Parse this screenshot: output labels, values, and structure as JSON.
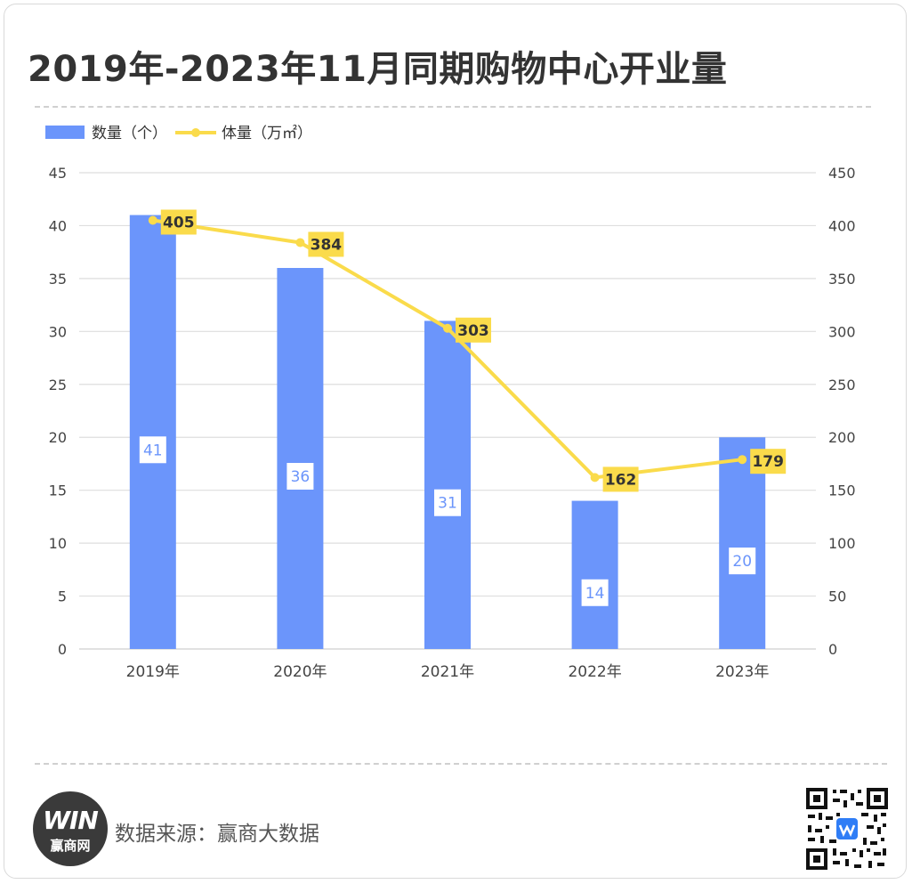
{
  "title": "2019年-2023年11月同期购物中心开业量",
  "source": "数据来源：赢商大数据",
  "logo": {
    "mark": "WIN",
    "label": "赢商网"
  },
  "qr_icon": "qr-code-icon",
  "chart_data": {
    "type": "bar+line",
    "categories": [
      "2019年",
      "2020年",
      "2021年",
      "2022年",
      "2023年"
    ],
    "series": [
      {
        "name": "数量（个）",
        "type": "bar",
        "axis": "left",
        "color": "#6b95fb",
        "values": [
          41,
          36,
          31,
          14,
          20
        ]
      },
      {
        "name": "体量（万㎡）",
        "type": "line",
        "axis": "right",
        "color": "#fadb4b",
        "values": [
          405,
          384,
          303,
          162,
          179
        ]
      }
    ],
    "y_left": {
      "min": 0,
      "max": 45,
      "step": 5,
      "ticks": [
        "0",
        "5",
        "10",
        "15",
        "20",
        "25",
        "30",
        "35",
        "40",
        "45"
      ]
    },
    "y_right": {
      "min": 0,
      "max": 450,
      "step": 50,
      "ticks": [
        "0",
        "50",
        "100",
        "150",
        "200",
        "250",
        "300",
        "350",
        "400",
        "450"
      ]
    },
    "legend_position": "top-left",
    "grid": true
  }
}
